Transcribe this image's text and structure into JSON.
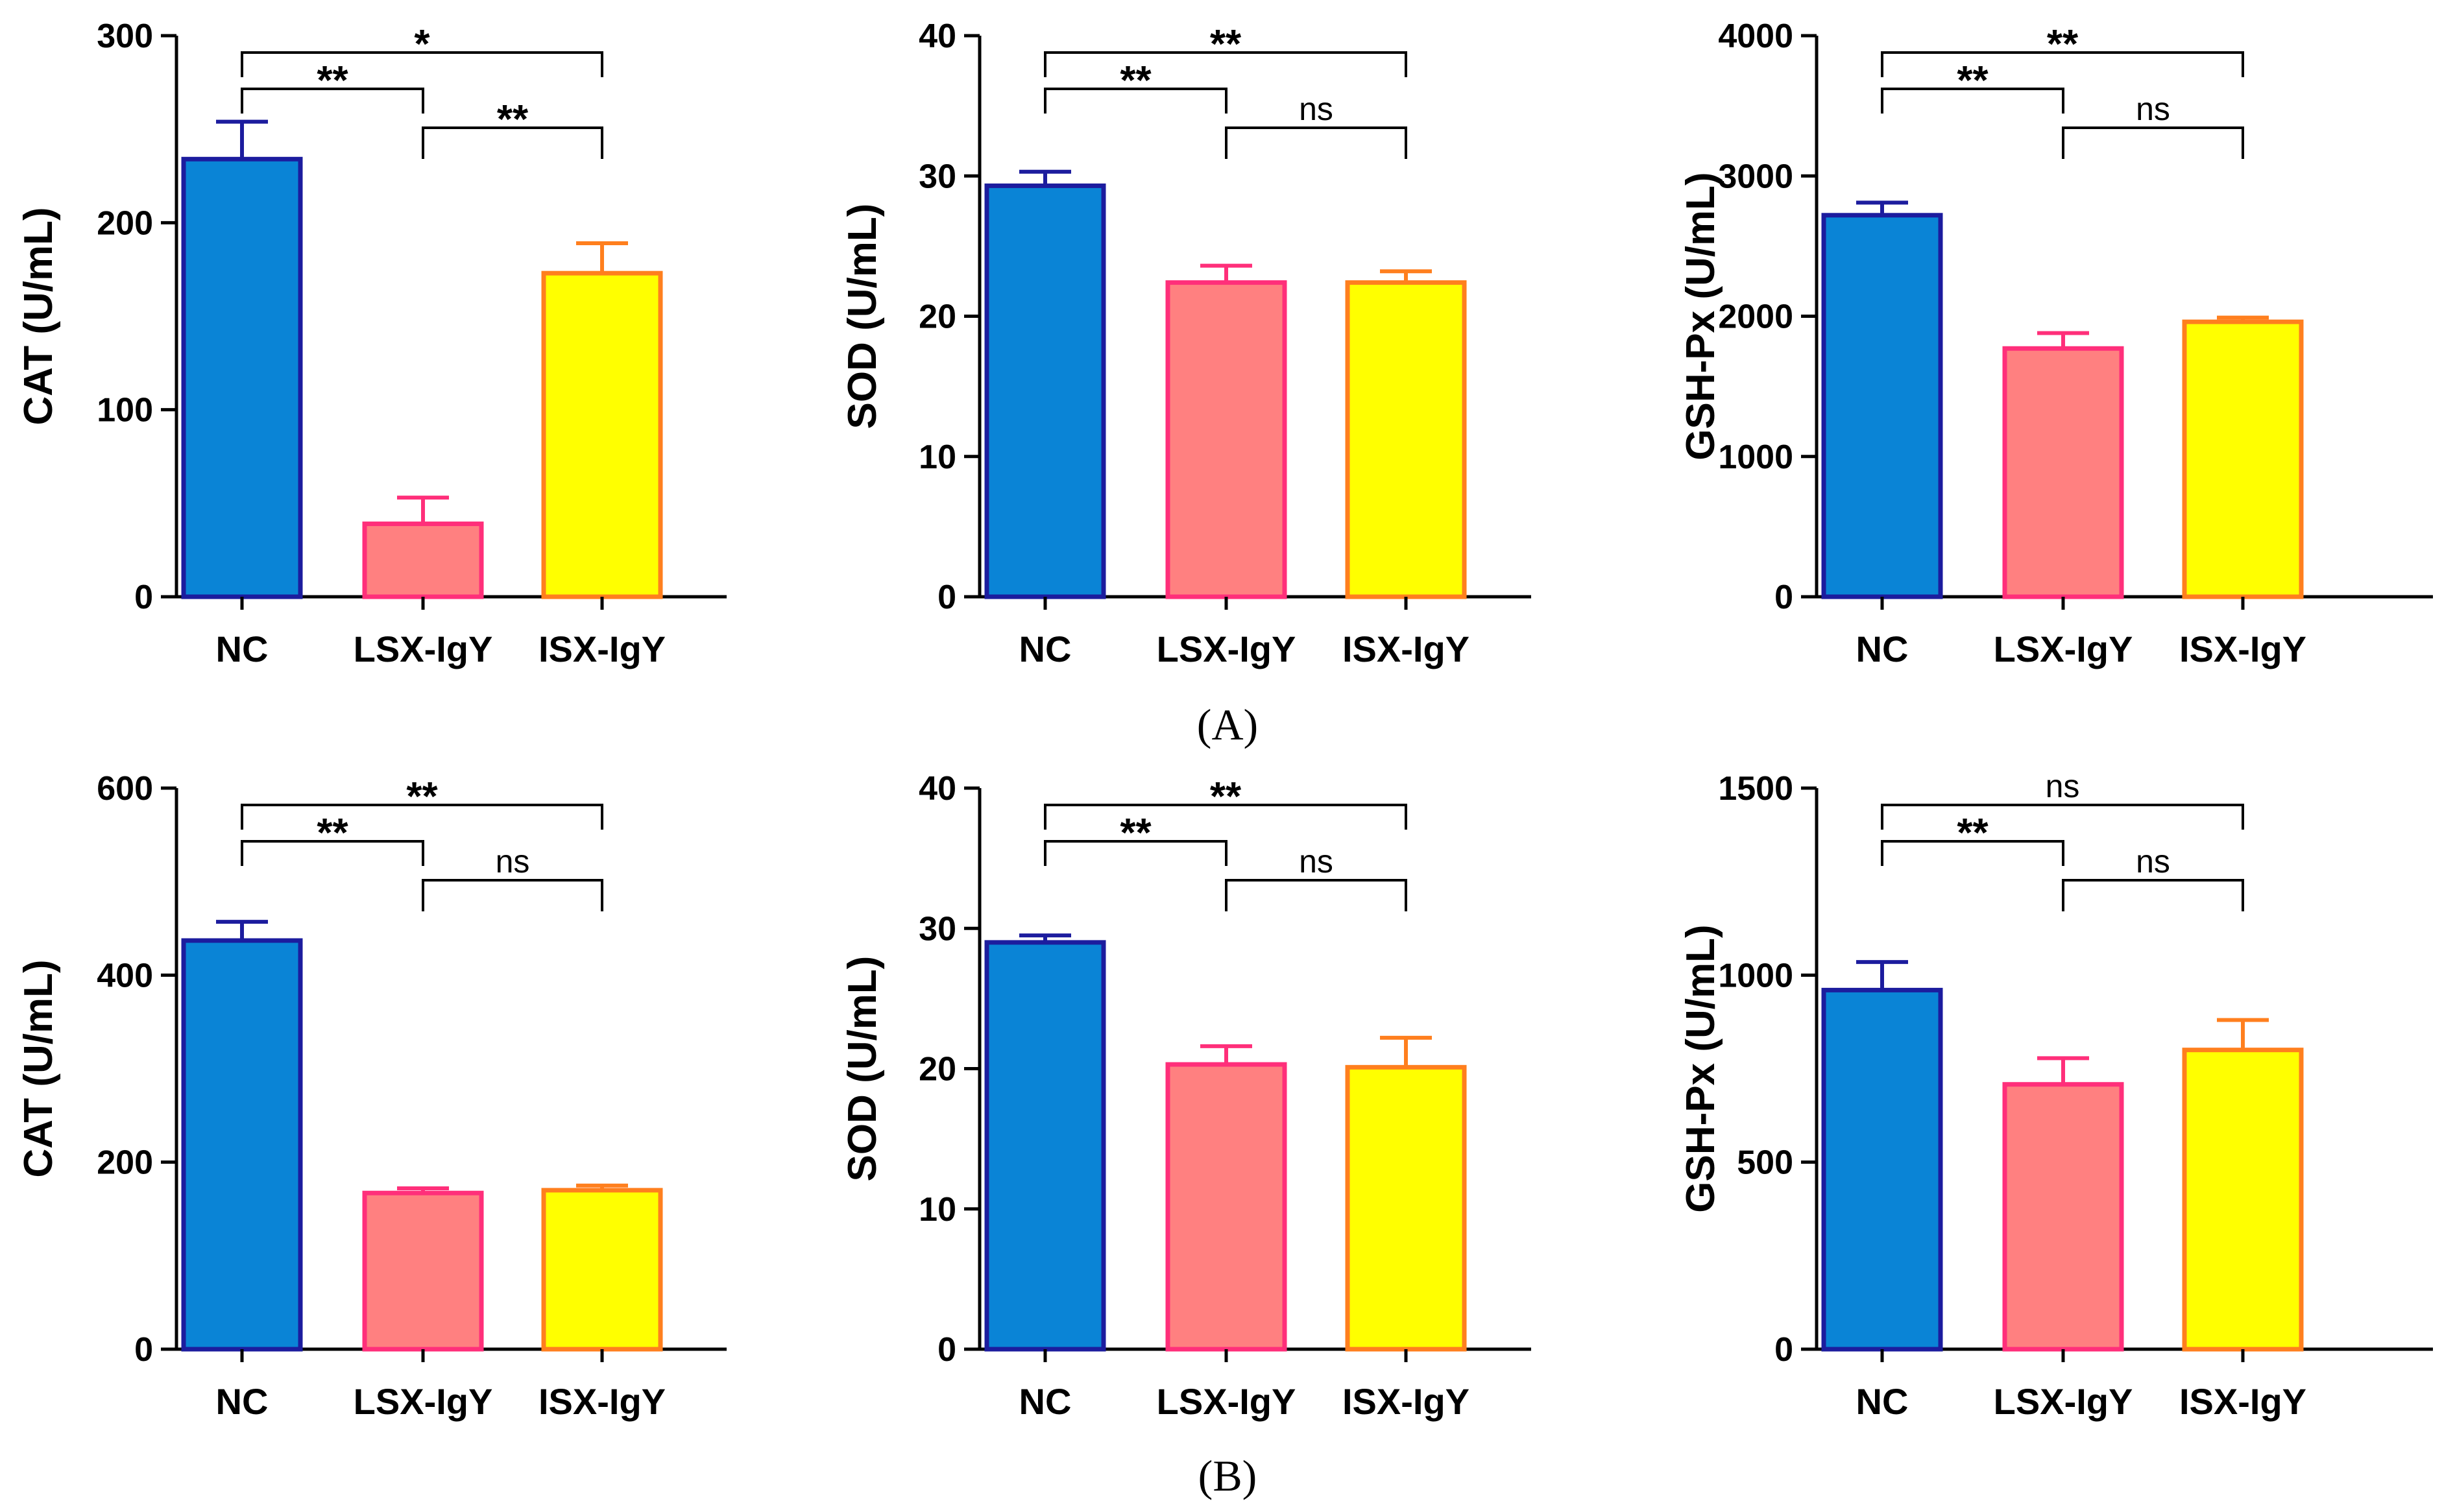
{
  "colors": {
    "NC": {
      "fill": "#0A84D6",
      "stroke": "#1C1C9E"
    },
    "LSX-IgY": {
      "fill": "#FF8080",
      "stroke": "#FF2F7A"
    },
    "ISX-IgY": {
      "fill": "#FFFF00",
      "stroke": "#FF7F1E"
    },
    "axis": "#000000"
  },
  "panel_labels": [
    "(A)",
    "(B)"
  ],
  "chart_data": [
    {
      "type": "bar",
      "panel": "A",
      "title": "",
      "ylabel": "CAT (U/mL)",
      "ylim": [
        0,
        300
      ],
      "yticks": [
        0,
        100,
        200,
        300
      ],
      "categories": [
        "NC",
        "LSX-IgY",
        "ISX-IgY"
      ],
      "values": [
        234,
        39,
        173
      ],
      "errors": [
        20,
        14,
        16
      ],
      "significance": [
        {
          "from": 0,
          "to": 1,
          "label": "**"
        },
        {
          "from": 1,
          "to": 2,
          "label": "**"
        },
        {
          "from": 0,
          "to": 2,
          "label": "*"
        }
      ]
    },
    {
      "type": "bar",
      "panel": "A",
      "title": "",
      "ylabel": "SOD (U/mL)",
      "ylim": [
        0,
        40
      ],
      "yticks": [
        0,
        10,
        20,
        30,
        40
      ],
      "categories": [
        "NC",
        "LSX-IgY",
        "ISX-IgY"
      ],
      "values": [
        29.3,
        22.4,
        22.4
      ],
      "errors": [
        1.0,
        1.2,
        0.8
      ],
      "significance": [
        {
          "from": 0,
          "to": 1,
          "label": "**"
        },
        {
          "from": 1,
          "to": 2,
          "label": "ns"
        },
        {
          "from": 0,
          "to": 2,
          "label": "**"
        }
      ]
    },
    {
      "type": "bar",
      "panel": "A",
      "title": "",
      "ylabel": "GSH-Px (U/mL)",
      "ylim": [
        0,
        4000
      ],
      "yticks": [
        0,
        1000,
        2000,
        3000,
        4000
      ],
      "categories": [
        "NC",
        "LSX-IgY",
        "ISX-IgY"
      ],
      "values": [
        2720,
        1770,
        1960
      ],
      "errors": [
        90,
        110,
        30
      ],
      "significance": [
        {
          "from": 0,
          "to": 1,
          "label": "**"
        },
        {
          "from": 1,
          "to": 2,
          "label": "ns"
        },
        {
          "from": 0,
          "to": 2,
          "label": "**"
        }
      ]
    },
    {
      "type": "bar",
      "panel": "B",
      "title": "",
      "ylabel": "CAT (U/mL)",
      "ylim": [
        0,
        600
      ],
      "yticks": [
        0,
        200,
        400,
        600
      ],
      "categories": [
        "NC",
        "LSX-IgY",
        "ISX-IgY"
      ],
      "values": [
        437,
        167,
        170
      ],
      "errors": [
        20,
        5,
        5
      ],
      "significance": [
        {
          "from": 0,
          "to": 1,
          "label": "**"
        },
        {
          "from": 1,
          "to": 2,
          "label": "ns"
        },
        {
          "from": 0,
          "to": 2,
          "label": "**"
        }
      ]
    },
    {
      "type": "bar",
      "panel": "B",
      "title": "",
      "ylabel": "SOD (U/mL)",
      "ylim": [
        0,
        40
      ],
      "yticks": [
        0,
        10,
        20,
        30,
        40
      ],
      "categories": [
        "NC",
        "LSX-IgY",
        "ISX-IgY"
      ],
      "values": [
        29.0,
        20.3,
        20.1
      ],
      "errors": [
        0.5,
        1.3,
        2.1
      ],
      "significance": [
        {
          "from": 0,
          "to": 1,
          "label": "**"
        },
        {
          "from": 1,
          "to": 2,
          "label": "ns"
        },
        {
          "from": 0,
          "to": 2,
          "label": "**"
        }
      ]
    },
    {
      "type": "bar",
      "panel": "B",
      "title": "",
      "ylabel": "GSH-Px (U/mL)",
      "ylim": [
        0,
        1500
      ],
      "yticks": [
        0,
        500,
        1000,
        1500
      ],
      "categories": [
        "NC",
        "LSX-IgY",
        "ISX-IgY"
      ],
      "values": [
        960,
        708,
        800
      ],
      "errors": [
        75,
        70,
        80
      ],
      "significance": [
        {
          "from": 0,
          "to": 1,
          "label": "**"
        },
        {
          "from": 1,
          "to": 2,
          "label": "ns"
        },
        {
          "from": 0,
          "to": 2,
          "label": "ns"
        }
      ]
    }
  ]
}
